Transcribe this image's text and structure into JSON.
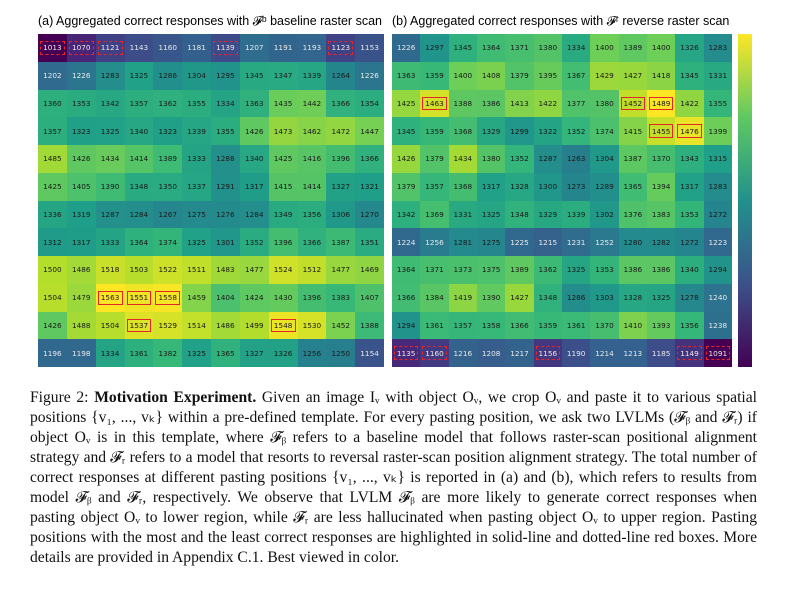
{
  "panel_a": {
    "title": "(a) Aggregated correct responses with 𝓕ᵇ baseline raster scan",
    "values": [
      [
        1013,
        1070,
        1121,
        1143,
        1160,
        1181,
        1139,
        1207,
        1191,
        1193,
        1123,
        1153
      ],
      [
        1202,
        1226,
        1283,
        1325,
        1286,
        1304,
        1295,
        1345,
        1347,
        1339,
        1264,
        1226
      ],
      [
        1360,
        1353,
        1342,
        1357,
        1362,
        1355,
        1334,
        1363,
        1435,
        1442,
        1366,
        1354
      ],
      [
        1357,
        1323,
        1325,
        1340,
        1323,
        1339,
        1355,
        1426,
        1473,
        1462,
        1472,
        1447
      ],
      [
        1485,
        1426,
        1434,
        1414,
        1389,
        1333,
        1288,
        1340,
        1425,
        1416,
        1396,
        1366
      ],
      [
        1425,
        1405,
        1390,
        1348,
        1350,
        1337,
        1291,
        1317,
        1415,
        1414,
        1327,
        1321
      ],
      [
        1336,
        1319,
        1287,
        1284,
        1267,
        1275,
        1276,
        1284,
        1349,
        1356,
        1306,
        1270
      ],
      [
        1312,
        1317,
        1333,
        1364,
        1374,
        1325,
        1301,
        1352,
        1396,
        1366,
        1387,
        1351
      ],
      [
        1500,
        1486,
        1518,
        1503,
        1522,
        1511,
        1483,
        1477,
        1524,
        1512,
        1477,
        1469
      ],
      [
        1504,
        1479,
        1563,
        1551,
        1558,
        1459,
        1404,
        1424,
        1430,
        1396,
        1383,
        1407
      ],
      [
        1426,
        1488,
        1504,
        1537,
        1529,
        1514,
        1486,
        1499,
        1548,
        1530,
        1452,
        1388
      ],
      [
        1196,
        1198,
        1334,
        1361,
        1382,
        1325,
        1365,
        1327,
        1326,
        1256,
        1250,
        1154
      ]
    ],
    "vmin": 1013,
    "vmax": 1563,
    "highlight_max": [
      [
        9,
        2
      ],
      [
        9,
        3
      ],
      [
        9,
        4
      ],
      [
        10,
        3
      ],
      [
        10,
        8
      ]
    ],
    "highlight_min": [
      [
        0,
        0
      ],
      [
        0,
        1
      ],
      [
        0,
        2
      ],
      [
        0,
        6
      ],
      [
        0,
        10
      ]
    ]
  },
  "panel_b": {
    "title": "(b) Aggregated correct responses with 𝓕ʳ reverse raster scan",
    "values": [
      [
        1226,
        1297,
        1345,
        1364,
        1371,
        1380,
        1334,
        1400,
        1389,
        1400,
        1326,
        1283
      ],
      [
        1363,
        1359,
        1400,
        1408,
        1379,
        1395,
        1367,
        1429,
        1427,
        1418,
        1345,
        1331
      ],
      [
        1425,
        1463,
        1388,
        1386,
        1413,
        1422,
        1377,
        1380,
        1452,
        1489,
        1422,
        1355
      ],
      [
        1345,
        1359,
        1368,
        1329,
        1299,
        1322,
        1352,
        1374,
        1415,
        1455,
        1476,
        1399
      ],
      [
        1426,
        1379,
        1434,
        1380,
        1352,
        1287,
        1263,
        1304,
        1387,
        1370,
        1343,
        1315
      ],
      [
        1379,
        1357,
        1368,
        1317,
        1328,
        1300,
        1273,
        1289,
        1365,
        1394,
        1317,
        1283
      ],
      [
        1342,
        1369,
        1331,
        1325,
        1348,
        1329,
        1339,
        1302,
        1376,
        1383,
        1353,
        1272
      ],
      [
        1224,
        1256,
        1281,
        1275,
        1225,
        1215,
        1231,
        1252,
        1280,
        1282,
        1272,
        1223
      ],
      [
        1364,
        1371,
        1373,
        1375,
        1389,
        1362,
        1325,
        1353,
        1386,
        1386,
        1340,
        1294
      ],
      [
        1366,
        1384,
        1419,
        1390,
        1427,
        1348,
        1286,
        1303,
        1328,
        1325,
        1278,
        1240
      ],
      [
        1294,
        1361,
        1357,
        1358,
        1366,
        1359,
        1361,
        1370,
        1410,
        1393,
        1356,
        1238
      ],
      [
        1135,
        1160,
        1216,
        1208,
        1217,
        1156,
        1190,
        1214,
        1213,
        1185,
        1149,
        1091
      ]
    ],
    "vmin": 1091,
    "vmax": 1489,
    "highlight_max": [
      [
        2,
        1
      ],
      [
        2,
        8
      ],
      [
        2,
        9
      ],
      [
        3,
        9
      ],
      [
        3,
        10
      ]
    ],
    "highlight_min": [
      [
        11,
        0
      ],
      [
        11,
        1
      ],
      [
        11,
        5
      ],
      [
        11,
        10
      ],
      [
        11,
        11
      ]
    ]
  },
  "colors": {
    "viridis": [
      "#440154",
      "#482878",
      "#3e4989",
      "#31688e",
      "#26828e",
      "#1f9e89",
      "#35b779",
      "#6ece58",
      "#b5de2b",
      "#fde725"
    ],
    "highlight": "#e4262a"
  },
  "caption": {
    "label": "Figure 2: ",
    "bold": "Motivation Experiment.",
    "text": " Given an image Iᵥ with object Oᵥ, we crop Oᵥ and paste it to various spatial positions {v₁, ..., vₖ} within a pre-defined template. For every pasting position, we ask two LVLMs (𝓕ᵦ and 𝓕ᵣ) if object Oᵥ is in this template, where 𝓕ᵦ refers to a baseline model that follows raster-scan positional alignment strategy and 𝓕ᵣ refers to a model that resorts to reversal raster-scan position alignment strategy. The total number of correct responses at different pasting positions {v₁, ..., vₖ} is reported in (a) and (b), which refers to results from model 𝓕ᵦ and 𝓕ᵣ, respectively. We observe that LVLM 𝓕ᵦ are more likely to generate correct responses when pasting object Oᵥ to lower region, while 𝓕ᵣ are less hallucinated when pasting object Oᵥ to upper region. Pasting positions with the most and the least correct responses are highlighted in solid-line and dotted-line red boxes. More details are provided in Appendix C.1. Best viewed in color."
  }
}
